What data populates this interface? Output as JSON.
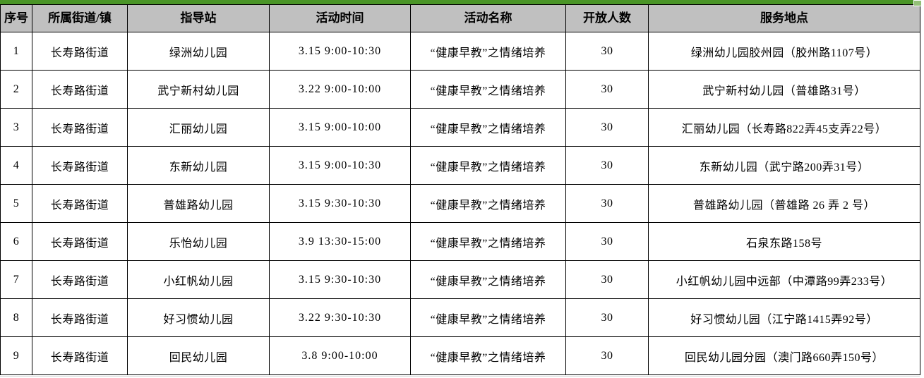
{
  "theme": {
    "selection_border_green": "#4a9527",
    "fill_handle_green": "#93c078",
    "header_background": "#c0c0c0",
    "grid_border": "#000000",
    "cell_background": "#ffffff",
    "text_color": "#000000"
  },
  "table": {
    "columns": [
      {
        "key": "no",
        "label": "序号"
      },
      {
        "key": "street",
        "label": "所属街道/镇"
      },
      {
        "key": "station",
        "label": "指导站"
      },
      {
        "key": "time",
        "label": "活动时间"
      },
      {
        "key": "activity",
        "label": "活动名称"
      },
      {
        "key": "capacity",
        "label": "开放人数"
      },
      {
        "key": "location",
        "label": "服务地点"
      }
    ],
    "rows": [
      {
        "no": "1",
        "street": "长寿路街道",
        "station": "绿洲幼儿园",
        "time": "3.15 9:00-10:30",
        "activity": "“健康早教”之情绪培养",
        "capacity": "30",
        "location": "绿洲幼儿园胶州园（胶州路1107号）"
      },
      {
        "no": "2",
        "street": "长寿路街道",
        "station": "武宁新村幼儿园",
        "time": "3.22 9:00-10:00",
        "activity": "“健康早教”之情绪培养",
        "capacity": "30",
        "location": "武宁新村幼儿园（普雄路31号）"
      },
      {
        "no": "3",
        "street": "长寿路街道",
        "station": "汇丽幼儿园",
        "time": "3.15 9:00-10:00",
        "activity": "“健康早教”之情绪培养",
        "capacity": "30",
        "location": "汇丽幼儿园（长寿路822弄45支弄22号）"
      },
      {
        "no": "4",
        "street": "长寿路街道",
        "station": "东新幼儿园",
        "time": "3.15 9:00-10:30",
        "activity": "“健康早教”之情绪培养",
        "capacity": "30",
        "location": "东新幼儿园（武宁路200弄31号）"
      },
      {
        "no": "5",
        "street": "长寿路街道",
        "station": "普雄路幼儿园",
        "time": "3.15 9:30-10:30",
        "activity": "“健康早教”之情绪培养",
        "capacity": "30",
        "location": "普雄路幼儿园（普雄路 26 弄 2 号）"
      },
      {
        "no": "6",
        "street": "长寿路街道",
        "station": "乐怡幼儿园",
        "time": "3.9 13:30-15:00",
        "activity": "“健康早教”之情绪培养",
        "capacity": "30",
        "location": "石泉东路158号"
      },
      {
        "no": "7",
        "street": "长寿路街道",
        "station": "小红帆幼儿园",
        "time": "3.15 9:30-10:30",
        "activity": "“健康早教”之情绪培养",
        "capacity": "30",
        "location": "小红帆幼儿园中远部（中潭路99弄233号）"
      },
      {
        "no": "8",
        "street": "长寿路街道",
        "station": "好习惯幼儿园",
        "time": "3.22 9:30-10:30",
        "activity": "“健康早教”之情绪培养",
        "capacity": "30",
        "location": "好习惯幼儿园（江宁路1415弄92号）"
      },
      {
        "no": "9",
        "street": "长寿路街道",
        "station": "回民幼儿园",
        "time": "3.8 9:00-10:00",
        "activity": "“健康早教”之情绪培养",
        "capacity": "30",
        "location": "回民幼儿园分园（澳门路660弄150号）"
      }
    ]
  }
}
